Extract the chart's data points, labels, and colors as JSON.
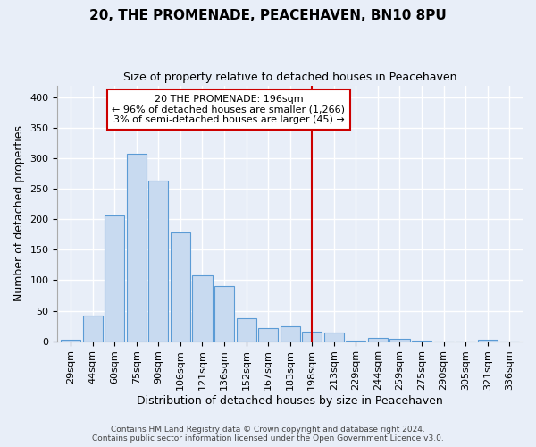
{
  "title": "20, THE PROMENADE, PEACEHAVEN, BN10 8PU",
  "subtitle": "Size of property relative to detached houses in Peacehaven",
  "xlabel": "Distribution of detached houses by size in Peacehaven",
  "ylabel": "Number of detached properties",
  "categories": [
    "29sqm",
    "44sqm",
    "60sqm",
    "75sqm",
    "90sqm",
    "106sqm",
    "121sqm",
    "136sqm",
    "152sqm",
    "167sqm",
    "183sqm",
    "198sqm",
    "213sqm",
    "229sqm",
    "244sqm",
    "259sqm",
    "275sqm",
    "290sqm",
    "305sqm",
    "321sqm",
    "336sqm"
  ],
  "values": [
    3,
    42,
    207,
    308,
    264,
    179,
    108,
    90,
    37,
    21,
    25,
    16,
    14,
    1,
    5,
    4,
    1,
    0,
    0,
    3,
    0
  ],
  "bar_color": "#c8daf0",
  "bar_edge_color": "#5b9bd5",
  "marker_idx": 11,
  "property_label": "20 THE PROMENADE: 196sqm",
  "annotation_line1": "← 96% of detached houses are smaller (1,266)",
  "annotation_line2": "3% of semi-detached houses are larger (45) →",
  "vline_color": "#cc0000",
  "annotation_box_edgecolor": "#cc0000",
  "ylim": [
    0,
    420
  ],
  "yticks": [
    0,
    50,
    100,
    150,
    200,
    250,
    300,
    350,
    400
  ],
  "background_color": "#e8eef8",
  "grid_color": "#ffffff",
  "title_fontsize": 11,
  "subtitle_fontsize": 9,
  "axis_label_fontsize": 9,
  "tick_fontsize": 8,
  "annotation_fontsize": 8,
  "footer": "Contains HM Land Registry data © Crown copyright and database right 2024.\nContains public sector information licensed under the Open Government Licence v3.0."
}
